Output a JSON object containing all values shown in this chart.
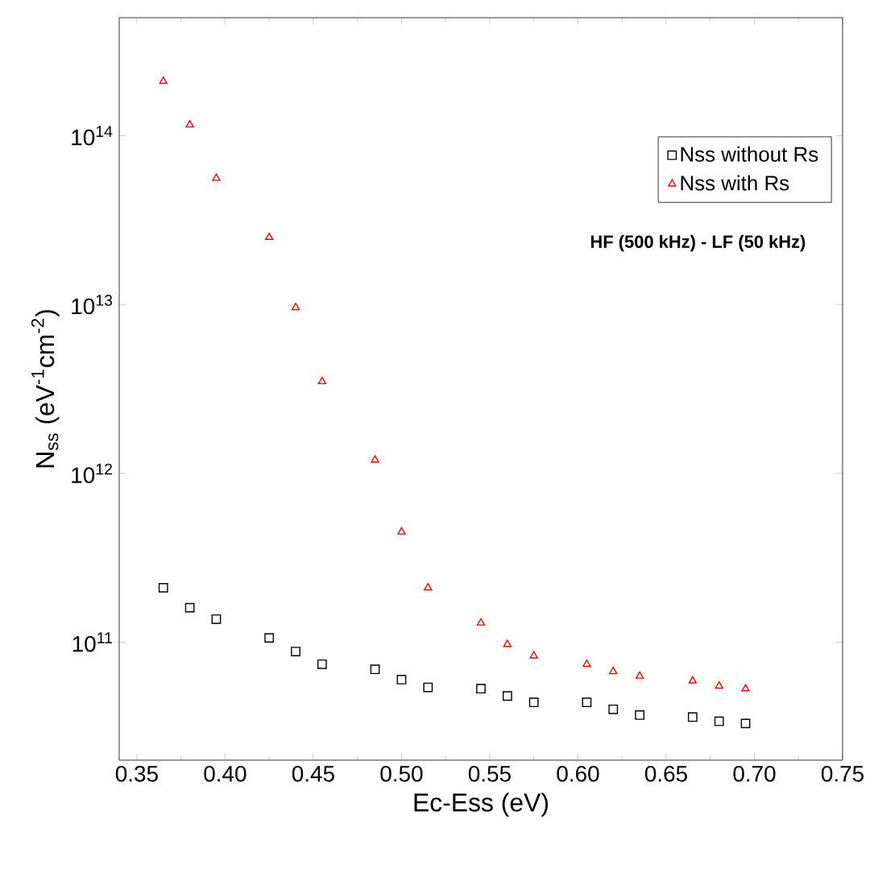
{
  "chart_data": {
    "type": "scatter",
    "xlabel": "Ec-Ess (eV)",
    "ylabel": "N$_{ss}$ (eV$^{-1}$cm$^{-2}$)",
    "x": [
      0.365,
      0.38,
      0.395,
      0.425,
      0.44,
      0.455,
      0.485,
      0.5,
      0.515,
      0.545,
      0.56,
      0.575,
      0.605,
      0.62,
      0.635,
      0.665,
      0.68,
      0.695
    ],
    "series": [
      {
        "name": "Nss without Rs",
        "color": "#000000",
        "marker": "square",
        "values": [
          210000000000.0,
          160000000000.0,
          137000000000.0,
          106000000000.0,
          88000000000.0,
          74000000000.0,
          69000000000.0,
          60000000000.0,
          54000000000.0,
          53000000000.0,
          48000000000.0,
          44000000000.0,
          44000000000.0,
          40000000000.0,
          37000000000.0,
          36000000000.0,
          34000000000.0,
          33000000000.0
        ]
      },
      {
        "name": "Nss with Rs",
        "color": "#ff0000",
        "marker": "triangle",
        "values": [
          210000000000000.0,
          116000000000000.0,
          56000000000000.0,
          25000000000000.0,
          9600000000000.0,
          3500000000000.0,
          1200000000000.0,
          450000000000.0,
          210000000000.0,
          130000000000.0,
          97000000000.0,
          83000000000.0,
          74000000000.0,
          67000000000.0,
          63000000000.0,
          59000000000.0,
          55000000000.0,
          53000000000.0
        ]
      }
    ],
    "annotations": [
      "**HF (500 kHz) - LF (50 kHz)**"
    ],
    "log": "y",
    "legend": "top right",
    "xlim": [
      0.34,
      0.75
    ],
    "ylim": [
      20000000000.0,
      500000000000000.0
    ],
    "xticks": [
      {
        "value": 0.35,
        "label": "0.35"
      },
      {
        "value": 0.4,
        "label": "0.40"
      },
      {
        "value": 0.45,
        "label": "0.45"
      },
      {
        "value": 0.5,
        "label": "0.50"
      },
      {
        "value": 0.55,
        "label": "0.55"
      },
      {
        "value": 0.6,
        "label": "0.60"
      },
      {
        "value": 0.65,
        "label": "0.65"
      },
      {
        "value": 0.7,
        "label": "0.70"
      },
      {
        "value": 0.75,
        "label": "0.75"
      }
    ],
    "yticks": [
      {
        "value": 100000000000.0,
        "label": "10$^{11}$"
      },
      {
        "value": 1000000000000.0,
        "label": "10$^{12}$"
      },
      {
        "value": 10000000000000.0,
        "label": "10$^{13}$"
      },
      {
        "value": 100000000000000.0,
        "label": "10$^{14}$"
      }
    ]
  }
}
